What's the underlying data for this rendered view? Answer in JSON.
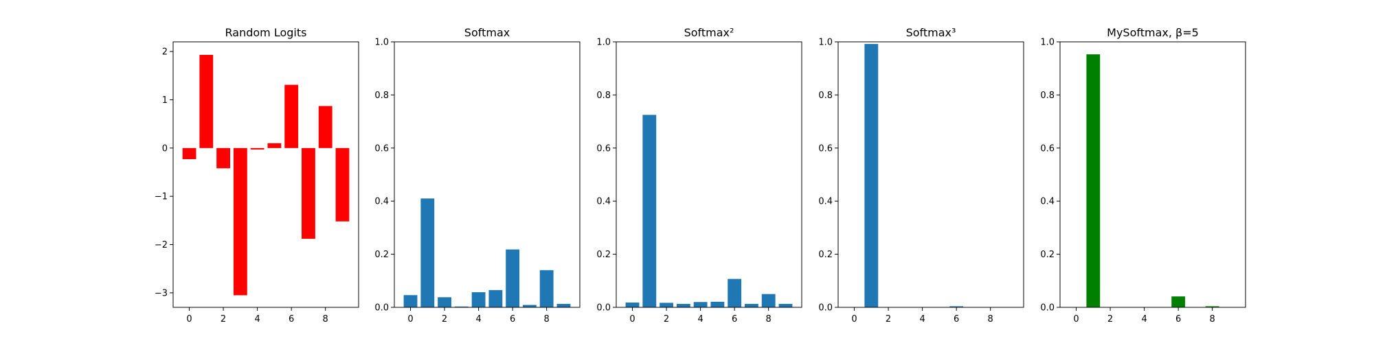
{
  "figure": {
    "background": "#ffffff"
  },
  "chart_data": [
    {
      "type": "bar",
      "title": "Random Logits",
      "color": "#ff0000",
      "x": [
        0,
        1,
        2,
        3,
        4,
        5,
        6,
        7,
        8,
        9
      ],
      "values": [
        -0.23,
        1.93,
        -0.42,
        -3.05,
        -0.03,
        0.1,
        1.31,
        -1.88,
        0.87,
        -1.52
      ],
      "ylim": [
        -3.3,
        2.2
      ],
      "xlim": [
        -0.95,
        9.95
      ],
      "yticks": [
        -3,
        -2,
        -1,
        0,
        1,
        2
      ],
      "yticklabels": [
        "−3",
        "−2",
        "−1",
        "0",
        "1",
        "2"
      ],
      "xticks": [
        0,
        2,
        4,
        6,
        8
      ],
      "xticklabels": [
        "0",
        "2",
        "4",
        "6",
        "8"
      ],
      "grid": false
    },
    {
      "type": "bar",
      "title": "Softmax",
      "color": "#1f77b4",
      "x": [
        0,
        1,
        2,
        3,
        4,
        5,
        6,
        7,
        8,
        9
      ],
      "values": [
        0.046,
        0.41,
        0.038,
        0.003,
        0.057,
        0.065,
        0.218,
        0.009,
        0.14,
        0.013
      ],
      "ylim": [
        0,
        1.0
      ],
      "xlim": [
        -0.95,
        9.95
      ],
      "yticks": [
        0,
        0.2,
        0.4,
        0.6,
        0.8,
        1.0
      ],
      "yticklabels": [
        "0.0",
        "0.2",
        "0.4",
        "0.6",
        "0.8",
        "1.0"
      ],
      "xticks": [
        0,
        2,
        4,
        6,
        8
      ],
      "xticklabels": [
        "0",
        "2",
        "4",
        "6",
        "8"
      ],
      "grid": false
    },
    {
      "type": "bar",
      "title": "Softmax²",
      "color": "#1f77b4",
      "x": [
        0,
        1,
        2,
        3,
        4,
        5,
        6,
        7,
        8,
        9
      ],
      "values": [
        0.018,
        0.725,
        0.017,
        0.013,
        0.02,
        0.021,
        0.107,
        0.013,
        0.05,
        0.013
      ],
      "ylim": [
        0,
        1.0
      ],
      "xlim": [
        -0.95,
        9.95
      ],
      "yticks": [
        0,
        0.2,
        0.4,
        0.6,
        0.8,
        1.0
      ],
      "yticklabels": [
        "0.0",
        "0.2",
        "0.4",
        "0.6",
        "0.8",
        "1.0"
      ],
      "xticks": [
        0,
        2,
        4,
        6,
        8
      ],
      "xticklabels": [
        "0",
        "2",
        "4",
        "6",
        "8"
      ],
      "grid": false
    },
    {
      "type": "bar",
      "title": "Softmax³",
      "color": "#1f77b4",
      "x": [
        0,
        1,
        2,
        3,
        4,
        5,
        6,
        7,
        8,
        9
      ],
      "values": [
        0.0005,
        0.992,
        0.0005,
        0.0005,
        0.0005,
        0.0005,
        0.004,
        0.0005,
        0.001,
        0.0005
      ],
      "ylim": [
        0,
        1.0
      ],
      "xlim": [
        -0.95,
        9.95
      ],
      "yticks": [
        0,
        0.2,
        0.4,
        0.6,
        0.8,
        1.0
      ],
      "yticklabels": [
        "0.0",
        "0.2",
        "0.4",
        "0.6",
        "0.8",
        "1.0"
      ],
      "xticks": [
        0,
        2,
        4,
        6,
        8
      ],
      "xticklabels": [
        "0",
        "2",
        "4",
        "6",
        "8"
      ],
      "grid": false
    },
    {
      "type": "bar",
      "title": "MySoftmax, β=5",
      "color": "#008000",
      "x": [
        0,
        1,
        2,
        3,
        4,
        5,
        6,
        7,
        8,
        9
      ],
      "values": [
        0.0,
        0.953,
        0.0,
        0.0,
        0.0,
        0.0,
        0.041,
        0.0,
        0.004,
        0.0
      ],
      "ylim": [
        0,
        1.0
      ],
      "xlim": [
        -0.95,
        9.95
      ],
      "yticks": [
        0,
        0.2,
        0.4,
        0.6,
        0.8,
        1.0
      ],
      "yticklabels": [
        "0.0",
        "0.2",
        "0.4",
        "0.6",
        "0.8",
        "1.0"
      ],
      "xticks": [
        0,
        2,
        4,
        6,
        8
      ],
      "xticklabels": [
        "0",
        "2",
        "4",
        "6",
        "8"
      ],
      "grid": false
    }
  ]
}
